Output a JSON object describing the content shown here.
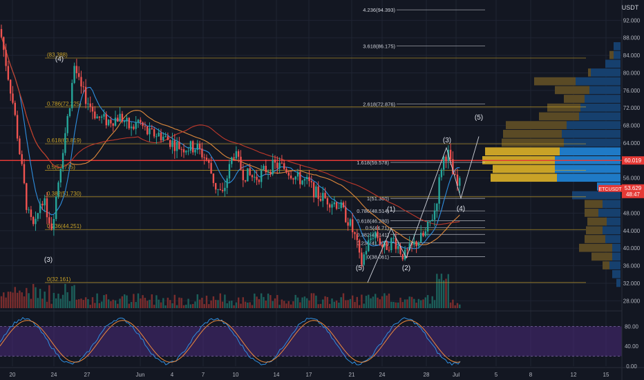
{
  "app": {
    "currency_label": "USDT"
  },
  "colors": {
    "bg": "#131722",
    "up": "#26a69a",
    "down": "#ef5350",
    "fib": "#c9a227",
    "grid": "#1f2433",
    "text": "#b2b5be",
    "ma_blue": "#2f8fe0",
    "ma_orange": "#e08a3c",
    "ma_red": "#c0392b",
    "rsi_band": "#4a2a7a",
    "vp_gold": "#c9a227",
    "vp_blue": "#1e6fb8"
  },
  "chart_data": {
    "type": "candlestick",
    "symbol": "ETCUSDT",
    "price_axis": {
      "ticks": [
        "92.000",
        "88.000",
        "84.000",
        "80.000",
        "76.000",
        "72.000",
        "68.000",
        "64.000",
        "60.000",
        "56.000",
        "52.000",
        "48.000",
        "44.000",
        "40.000",
        "36.000",
        "32.000",
        "28.000"
      ],
      "range": [
        26,
        96
      ]
    },
    "time_axis": {
      "ticks": [
        "20",
        "24",
        "27",
        "Jun",
        "4",
        "7",
        "10",
        "14",
        "17",
        "21",
        "24",
        "28",
        "Jul",
        "5",
        "8",
        "12",
        "15"
      ]
    },
    "current_price": {
      "label": "ETCUSDT",
      "value": "53.629",
      "countdown": "48:47"
    },
    "red_line": {
      "value": "60.019"
    },
    "fib_levels_left": [
      {
        "label": "(83.388)",
        "value": 83.388
      },
      {
        "label": "0.786(72.225)",
        "value": 72.225
      },
      {
        "label": "0.618(63.819)",
        "value": 63.819
      },
      {
        "label": "0.5(57.775)",
        "value": 57.775
      },
      {
        "label": "0.382(51.730)",
        "value": 51.73
      },
      {
        "label": "0.236(44.251)",
        "value": 44.251
      },
      {
        "label": "0(32.161)",
        "value": 32.161
      }
    ],
    "fib_levels_right": [
      {
        "label": "4.236(94.393)",
        "value": 94.393
      },
      {
        "label": "3.618(86.175)",
        "value": 86.175
      },
      {
        "label": "2.618(72.876)",
        "value": 72.876
      },
      {
        "label": "1.618(59.578)",
        "value": 59.578
      },
      {
        "label": "1(51.360)",
        "value": 51.36
      },
      {
        "label": "0.786(48.514)",
        "value": 48.514
      },
      {
        "label": "0.618(46.280)",
        "value": 46.28
      },
      {
        "label": "0.5(44.71)",
        "value": 44.71
      },
      {
        "label": "0.382(43.141)",
        "value": 43.141
      },
      {
        "label": "0.236(41.200)",
        "value": 41.2
      },
      {
        "label": "0(38.061)",
        "value": 38.061
      }
    ],
    "wave_labels": [
      {
        "text": "(4)",
        "x": 2,
        "y": 83.3
      },
      {
        "text": "(3)",
        "x": 3,
        "y": 37.5
      },
      {
        "text": "(5)",
        "x": 31,
        "y": 35.6
      },
      {
        "text": "(1)",
        "x": 33.5,
        "y": 49.0
      },
      {
        "text": "(2)",
        "x": 35,
        "y": 35.6
      },
      {
        "text": "(3)",
        "x": 39,
        "y": 64.8
      },
      {
        "text": "(4)",
        "x": 41,
        "y": 49.2
      },
      {
        "text": "(5)",
        "x": 42.5,
        "y": 70.0
      }
    ],
    "wave_path": [
      [
        32,
        32.16
      ],
      [
        34,
        44.5
      ],
      [
        35.3,
        37.8
      ],
      [
        39,
        62.9
      ],
      [
        40.6,
        51.4
      ],
      [
        42.3,
        65.5
      ]
    ],
    "volume_profile": [
      {
        "price": 86,
        "gold": 0,
        "blue": 10
      },
      {
        "price": 84,
        "gold": 6,
        "blue": 10
      },
      {
        "price": 82,
        "gold": 0,
        "blue": 22
      },
      {
        "price": 80,
        "gold": 4,
        "blue": 43
      },
      {
        "price": 78,
        "gold": 60,
        "blue": 65
      },
      {
        "price": 76,
        "gold": 50,
        "blue": 45
      },
      {
        "price": 74,
        "gold": 30,
        "blue": 52
      },
      {
        "price": 72,
        "gold": 48,
        "blue": 58
      },
      {
        "price": 70,
        "gold": 58,
        "blue": 60
      },
      {
        "price": 68,
        "gold": 88,
        "blue": 78
      },
      {
        "price": 66,
        "gold": 85,
        "blue": 85
      },
      {
        "price": 64,
        "gold": 90,
        "blue": 82
      },
      {
        "price": 62,
        "gold": 108,
        "blue": 88
      },
      {
        "price": 60,
        "gold": 105,
        "blue": 95
      },
      {
        "price": 58,
        "gold": 90,
        "blue": 95
      },
      {
        "price": 56,
        "gold": 96,
        "blue": 92
      },
      {
        "price": 54,
        "gold": 0,
        "blue": 34
      },
      {
        "price": 52,
        "gold": 0,
        "blue": 70
      },
      {
        "price": 50,
        "gold": 26,
        "blue": 26
      },
      {
        "price": 48,
        "gold": 20,
        "blue": 32
      },
      {
        "price": 46,
        "gold": 28,
        "blue": 20
      },
      {
        "price": 44,
        "gold": 24,
        "blue": 26
      },
      {
        "price": 42,
        "gold": 30,
        "blue": 22
      },
      {
        "price": 40,
        "gold": 48,
        "blue": 12
      },
      {
        "price": 38,
        "gold": 30,
        "blue": 12
      },
      {
        "price": 36,
        "gold": 10,
        "blue": 16
      },
      {
        "price": 34,
        "gold": 0,
        "blue": 12
      },
      {
        "price": 32,
        "gold": 0,
        "blue": 6
      }
    ],
    "rsi_axis": {
      "ticks": [
        "80.00",
        "40.00",
        "0.00"
      ]
    }
  }
}
